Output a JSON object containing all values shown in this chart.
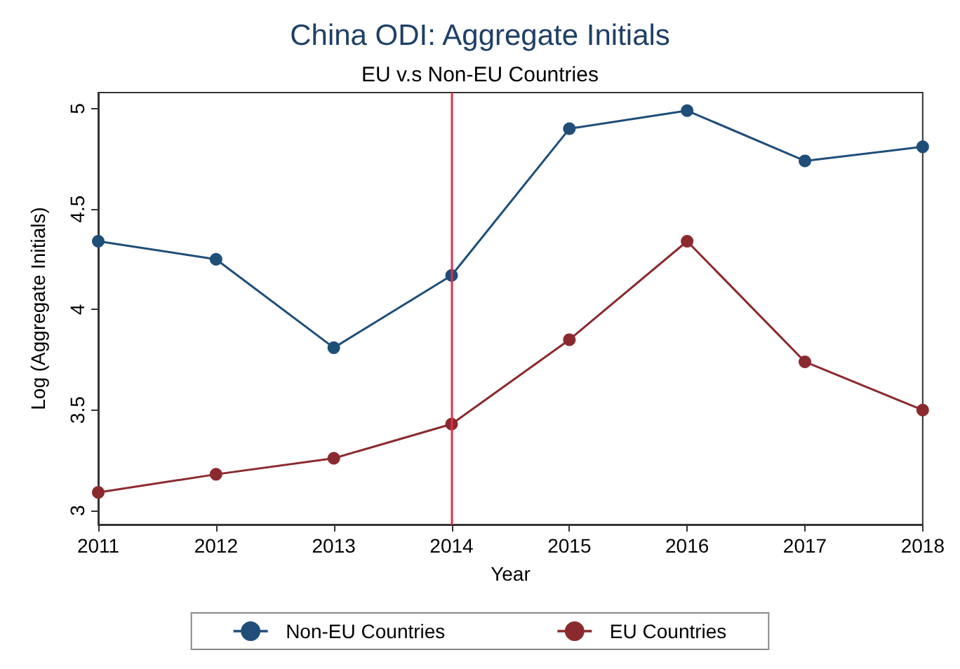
{
  "chart_data": {
    "type": "line",
    "title": "China ODI: Aggregate Initials",
    "subtitle": "EU v.s Non-EU Countries",
    "xlabel": "Year",
    "ylabel": "Log (Aggregate Initials)",
    "x": [
      2011,
      2012,
      2013,
      2014,
      2015,
      2016,
      2017,
      2018
    ],
    "series": [
      {
        "name": "Non-EU Countries",
        "color": "#1f4e79",
        "values": [
          4.34,
          4.25,
          3.81,
          4.17,
          4.9,
          4.99,
          4.74,
          4.81
        ]
      },
      {
        "name": "EU Countries",
        "color": "#8b2a2e",
        "values": [
          3.09,
          3.18,
          3.26,
          3.43,
          3.85,
          4.34,
          3.74,
          3.5
        ]
      }
    ],
    "xlim": [
      2011,
      2018
    ],
    "xticks": [
      2011,
      2012,
      2013,
      2014,
      2015,
      2016,
      2017,
      2018
    ],
    "ylim": [
      2.93,
      5.08
    ],
    "yticks": [
      3,
      3.5,
      4,
      4.5,
      5
    ],
    "ref_lines": [
      {
        "axis": "x",
        "value": 2014,
        "color": "#e0304a"
      }
    ],
    "grid": false,
    "legend": "bottom",
    "marker": "circle",
    "line_style": "solid"
  }
}
